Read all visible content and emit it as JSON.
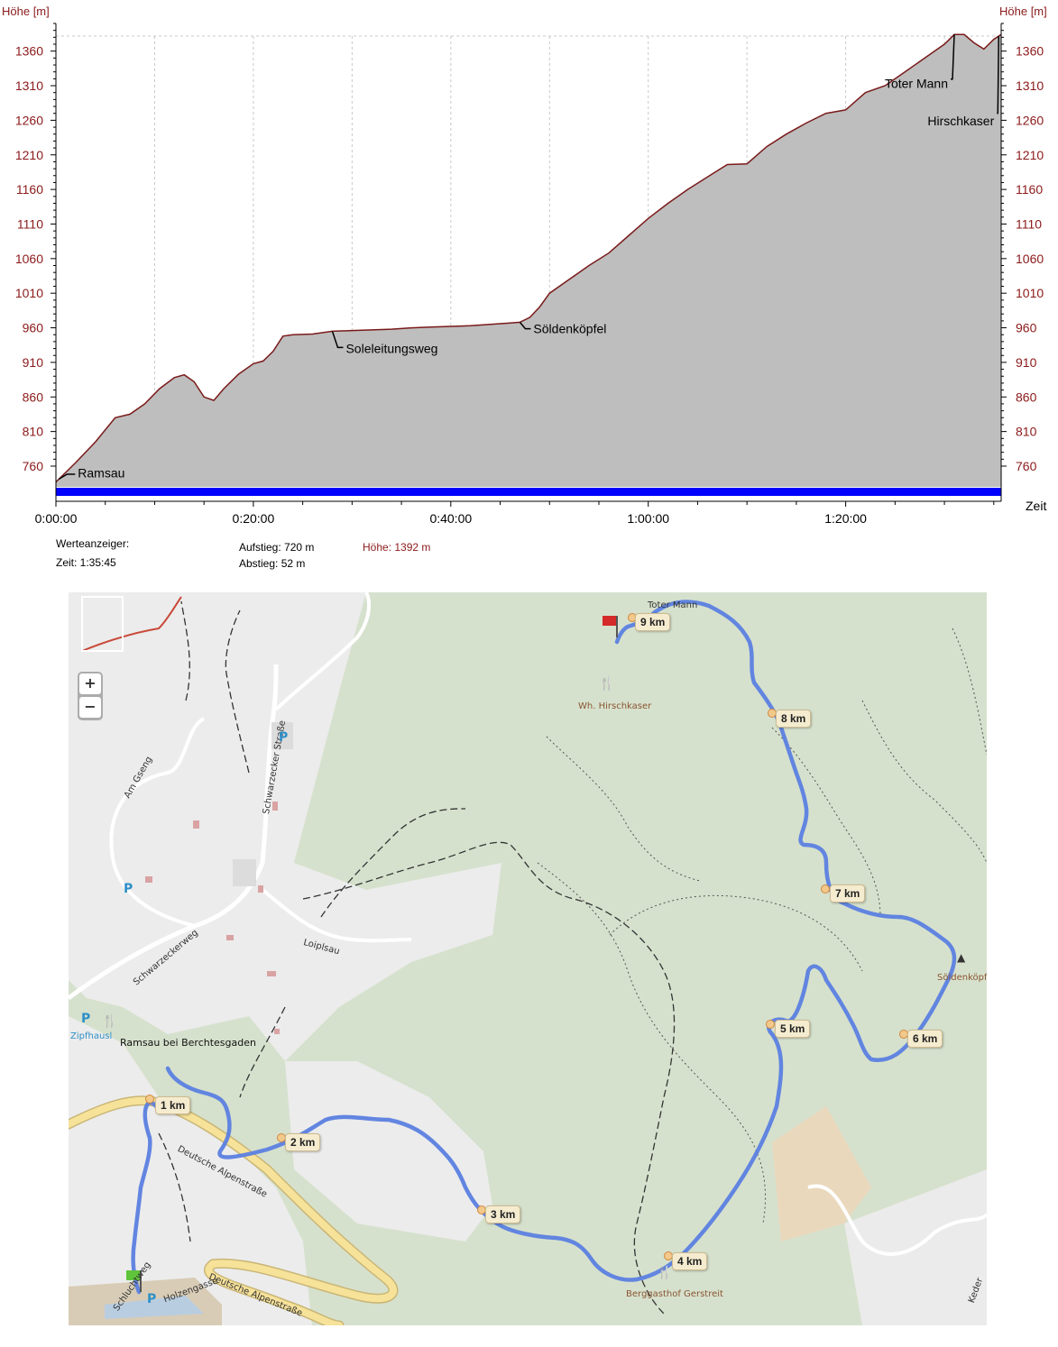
{
  "chart_data": {
    "type": "area",
    "ylabel_left": "Höhe [m]",
    "ylabel_right": "Höhe [m]",
    "xlabel": "Zeit",
    "x_ticks": [
      "0:00:00",
      "0:20:00",
      "0:40:00",
      "1:00:00",
      "1:20:00"
    ],
    "y_ticks": [
      760,
      810,
      860,
      910,
      960,
      1010,
      1060,
      1110,
      1160,
      1210,
      1260,
      1310,
      1360
    ],
    "xlim_min": [
      0,
      95.75
    ],
    "ylim": [
      730,
      1400
    ],
    "grid": true,
    "series": [
      {
        "x_min": [
          0,
          2,
          4,
          6,
          7.5,
          9,
          10.5,
          12,
          13,
          14,
          15,
          16,
          17,
          18.5,
          20,
          21,
          22,
          23,
          24,
          26,
          28,
          30,
          32,
          34,
          36,
          38,
          40,
          42,
          44,
          46,
          47,
          48,
          49,
          50,
          52,
          54,
          56,
          58,
          60,
          62,
          64,
          66,
          68,
          70,
          72,
          74,
          76,
          78,
          80,
          82,
          84,
          86,
          88,
          90,
          91,
          92,
          93,
          94,
          95,
          95.75
        ],
        "elevation_m": [
          737,
          765,
          795,
          830,
          835,
          850,
          872,
          888,
          892,
          882,
          860,
          855,
          872,
          893,
          908,
          912,
          926,
          948,
          950,
          951,
          955,
          956,
          957,
          958,
          960,
          961,
          962,
          963,
          965,
          967,
          968,
          975,
          990,
          1010,
          1030,
          1050,
          1068,
          1093,
          1118,
          1140,
          1160,
          1178,
          1196,
          1197,
          1222,
          1240,
          1256,
          1270,
          1275,
          1300,
          1310,
          1330,
          1350,
          1370,
          1384,
          1384,
          1372,
          1363,
          1377,
          1384
        ]
      }
    ],
    "annotations": [
      {
        "label": "Ramsau",
        "x_min": 0.3
      },
      {
        "label": "Soleleitungsweg",
        "x_min": 28
      },
      {
        "label": "Söldenköpfel",
        "x_min": 47
      },
      {
        "label": "Toter Mann",
        "x_min": 91
      },
      {
        "label": "Hirschkaser",
        "x_min": 95.5
      }
    ]
  },
  "stats": {
    "werteanzeiger": "Werteanzeiger:",
    "zeit": "Zeit: 1:35:45",
    "aufstieg": "Aufstieg: 720 m",
    "abstieg": "Abstieg: 52 m",
    "hoehe": "Höhe: 1392 m"
  },
  "map": {
    "zoom_in": "+",
    "zoom_out": "−",
    "km_markers": [
      "1 km",
      "2 km",
      "3 km",
      "4 km",
      "5 km",
      "6 km",
      "7 km",
      "8 km",
      "9 km"
    ],
    "labels": {
      "toter_mann": "Toter Mann",
      "hirschkaser": "Wh. Hirschkaser",
      "soeldenkoepfl": "Söldenköpfl",
      "gerstreit": "Berggasthof Gerstreit",
      "zipfhausl": "Zipfhausl",
      "ramsau": "Ramsau bei Berchtesgaden",
      "am_gseng": "Am Gseng",
      "schwarzecker_strasse": "Schwarzecker Straße",
      "schwarzeckerweg": "Schwarzeckerweg",
      "loiplsau": "Loiplsau",
      "deutsche_alpenstrasse_1": "Deutsche Alpenstraße",
      "deutsche_alpenstrasse_2": "Deutsche Alpenstraße",
      "holzengasse": "Holzengasse",
      "schluchtweg": "Schluchtweg",
      "kederbach": "Keder",
      "parking": "P"
    },
    "colors": {
      "route": "#5b7fe0",
      "area_fill": "#bebebe",
      "profile_line": "#7a1a1a",
      "axis_text": "#8b1a1a",
      "time_bar": "#0000ff"
    }
  }
}
